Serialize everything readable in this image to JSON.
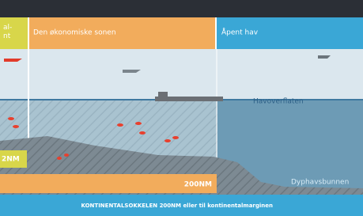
{
  "header": {
    "zones": [
      "al-\nnt",
      "Den økonomiske sonen",
      "Åpent hav"
    ]
  },
  "labels": {
    "surface": "Havoverflaten",
    "deep_seabed": "Dyphavsbunnen",
    "territorial_limit": "2NM",
    "economic_limit": "200NM"
  },
  "footer": {
    "text": "KONTINENTALSOKKELEN 200NM eller til kontinentalmarginen"
  }
}
